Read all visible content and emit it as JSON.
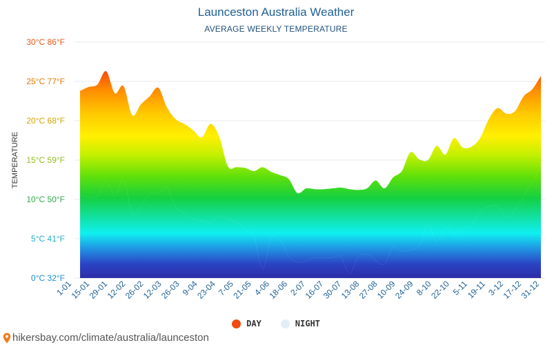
{
  "header": {
    "title": "Launceston Australia Weather",
    "subtitle": "AVERAGE WEEKLY TEMPERATURE"
  },
  "legend": {
    "day_label": "DAY",
    "night_label": "NIGHT",
    "day_color": "#ee4a11",
    "night_color": "#e3edf7"
  },
  "source": {
    "text": "hikersbay.com/climate/australia/launceston"
  },
  "colors": {
    "title": "#1f5f94",
    "grid": "#e8e8e8",
    "tick_label": "#1f5f94"
  },
  "chart_data": {
    "type": "area",
    "ylabel": "TEMPERATURE",
    "xlabel": "",
    "ylim": [
      0,
      30
    ],
    "grid": true,
    "legend_position": "bottom",
    "y_ticks": [
      {
        "value": 0,
        "label": "0°C 32°F",
        "color": "#1a8fd6"
      },
      {
        "value": 5,
        "label": "5°C 41°F",
        "color": "#1fb0c8"
      },
      {
        "value": 10,
        "label": "10°C 50°F",
        "color": "#2eaa48"
      },
      {
        "value": 15,
        "label": "15°C 59°F",
        "color": "#8fbf1a"
      },
      {
        "value": 20,
        "label": "20°C 68°F",
        "color": "#d5a400"
      },
      {
        "value": 25,
        "label": "25°C 77°F",
        "color": "#e47a00"
      },
      {
        "value": 30,
        "label": "30°C 86°F",
        "color": "#e8581a"
      }
    ],
    "x_tick_labels": [
      "1-01",
      "15-01",
      "29-01",
      "12-02",
      "26-02",
      "12-03",
      "26-03",
      "9-04",
      "23-04",
      "7-05",
      "21-05",
      "4-06",
      "18-06",
      "2-07",
      "16-07",
      "30-07",
      "13-08",
      "27-08",
      "10-09",
      "24-09",
      "8-10",
      "22-10",
      "5-11",
      "19-11",
      "3-12",
      "17-12",
      "31-12"
    ],
    "series": [
      {
        "name": "DAY",
        "values": [
          23.8,
          24.3,
          24.6,
          26.3,
          23.5,
          24.4,
          20.7,
          22.1,
          23.1,
          24.2,
          21.7,
          20.2,
          19.6,
          18.8,
          17.9,
          19.6,
          18.0,
          14.2,
          14.1,
          14.0,
          13.6,
          14.1,
          13.5,
          13.1,
          12.6,
          10.8,
          11.4,
          11.3,
          11.3,
          11.4,
          11.5,
          11.3,
          11.2,
          11.4,
          12.4,
          11.4,
          12.8,
          13.6,
          16.0,
          15.1,
          15.0,
          16.8,
          15.7,
          17.8,
          16.6,
          16.7,
          17.8,
          20.2,
          21.6,
          20.9,
          21.2,
          23.1,
          24.0,
          25.7
        ]
      },
      {
        "name": "NIGHT",
        "values": [
          10.5,
          10.3,
          10.4,
          12.3,
          10.4,
          12.5,
          8.3,
          9.1,
          10.8,
          10.7,
          11.5,
          9.1,
          8.2,
          7.5,
          7.3,
          7.1,
          7.9,
          7.5,
          7.1,
          6.3,
          5.2,
          1.2,
          5.1,
          4.8,
          2.8,
          2.0,
          2.2,
          2.6,
          2.6,
          2.6,
          2.7,
          0.6,
          2.7,
          3.0,
          2.2,
          1.8,
          3.9,
          3.4,
          3.6,
          4.1,
          6.8,
          4.7,
          6.4,
          5.7,
          6.2,
          6.7,
          8.5,
          9.1,
          9.2,
          7.8,
          8.7,
          10.4,
          12.2,
          14.2
        ]
      }
    ]
  }
}
